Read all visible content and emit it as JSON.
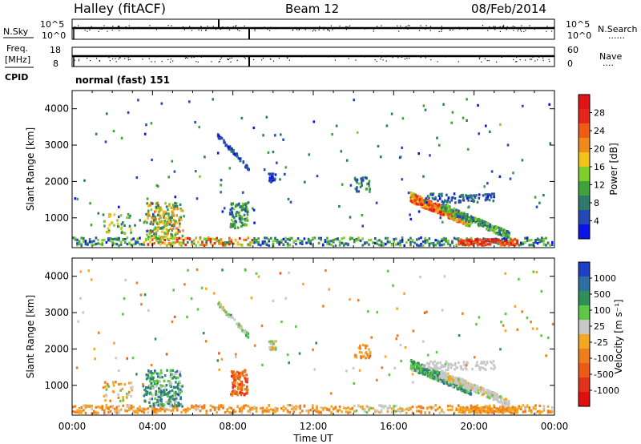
{
  "header": {
    "station": "Halley (fitACF)",
    "beam": "Beam 12",
    "date": "08/Feb/2014"
  },
  "nsky_panel": {
    "left_label": "N.Sky",
    "right_label": "N.Search",
    "right_dots": "......",
    "left_ticks": [
      "10^5",
      "10^0"
    ],
    "right_ticks": [
      "10^5",
      "10^0"
    ]
  },
  "freq_panel": {
    "left_label_1": "Freq.",
    "left_label_2": "[MHz]",
    "left_ticks": [
      "18",
      "8"
    ],
    "right_label": "Nave",
    "right_dots": "....",
    "right_ticks": [
      "60",
      "0"
    ]
  },
  "cpid": {
    "label": "CPID",
    "value": "normal (fast) 151"
  },
  "x_axis": {
    "label": "Time UT",
    "ticks": [
      "00:00",
      "04:00",
      "08:00",
      "12:00",
      "16:00",
      "20:00",
      "00:00"
    ]
  },
  "chart_data": [
    {
      "type": "heatmap",
      "name": "power",
      "ylabel": "Slant Range [km]",
      "yticks": [
        "1000",
        "2000",
        "3000",
        "4000"
      ],
      "ylim": [
        180,
        4500
      ],
      "xlim_hours": [
        0,
        24
      ],
      "colorbar": {
        "label": "Power [dB]",
        "ticks": [
          "4",
          "8",
          "12",
          "16",
          "20",
          "24",
          "28"
        ],
        "colors": [
          "#0a14e6",
          "#2449b4",
          "#2e7a6a",
          "#3fa33a",
          "#7fcf2a",
          "#f3c21a",
          "#f08a1c",
          "#ee5b14",
          "#e3261a",
          "#e01414"
        ]
      },
      "features": [
        {
          "t": [
            0.0,
            24.0
          ],
          "r": 200,
          "level": 0.35
        },
        {
          "t": [
            3.8,
            5.2
          ],
          "r": 800,
          "level": 0.55
        },
        {
          "t": [
            7.3,
            8.3
          ],
          "r": 2900,
          "level": 0.15
        },
        {
          "t": [
            9.7,
            10.0
          ],
          "r": 2050,
          "level": 0.15
        },
        {
          "t": [
            17.2,
            19.5
          ],
          "r": 1300,
          "level": 0.6
        },
        {
          "t": [
            19.5,
            21.8
          ],
          "r": 330,
          "level": 0.85
        }
      ]
    },
    {
      "type": "heatmap",
      "name": "velocity",
      "ylabel": "Slant Range [km]",
      "yticks": [
        "1000",
        "2000",
        "3000",
        "4000"
      ],
      "ylim": [
        180,
        4500
      ],
      "xlim_hours": [
        0,
        24
      ],
      "colorbar": {
        "label": "Velocity [m s⁻¹]",
        "ticks": [
          "1000",
          "500",
          "100",
          "25",
          "-25",
          "-100",
          "-500",
          "-1000"
        ],
        "colors": [
          "#1e3fc8",
          "#2d6fa0",
          "#2f8e5a",
          "#5cc844",
          "#c8c8c8",
          "#f5a623",
          "#f07d1c",
          "#ee5a16",
          "#e33018",
          "#e01010"
        ]
      },
      "features": [
        {
          "t": [
            0.0,
            24.0
          ],
          "r": 200,
          "level": "approaching"
        },
        {
          "t": [
            17.2,
            19.5
          ],
          "r": 1300,
          "level": "receding"
        },
        {
          "t": [
            18.5,
            21.0
          ],
          "r": 1600,
          "level": "near zero"
        }
      ]
    }
  ]
}
